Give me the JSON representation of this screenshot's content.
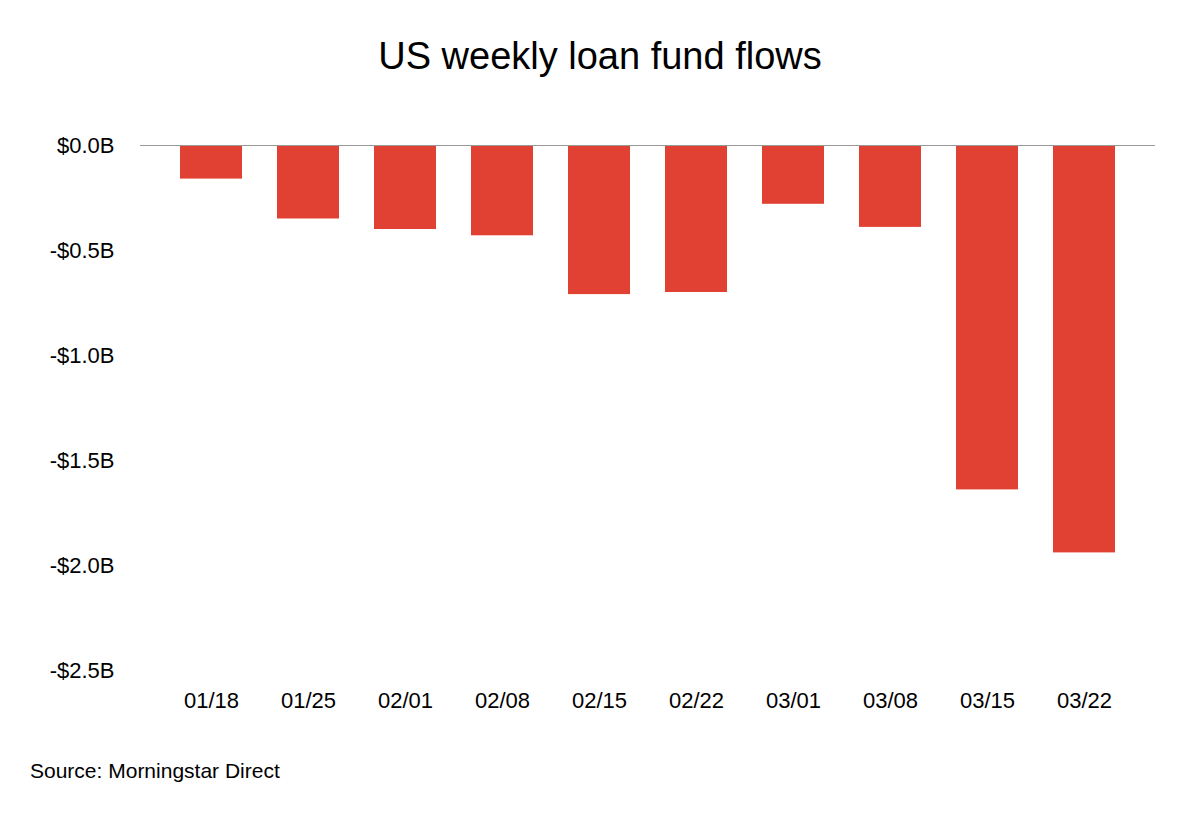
{
  "chart_data": {
    "type": "bar",
    "title": "US weekly loan fund flows",
    "source": "Source: Morningstar Direct",
    "categories": [
      "01/18",
      "01/25",
      "02/01",
      "02/08",
      "02/15",
      "02/22",
      "03/01",
      "03/08",
      "03/15",
      "03/22"
    ],
    "values": [
      -0.16,
      -0.35,
      -0.4,
      -0.43,
      -0.71,
      -0.7,
      -0.28,
      -0.39,
      -1.64,
      -1.94
    ],
    "color": "#e04133",
    "ylim": [
      -2.5,
      0
    ],
    "yticks": [
      {
        "value": 0,
        "label": "$0.0B"
      },
      {
        "value": -0.5,
        "label": "-$0.5B"
      },
      {
        "value": -1.0,
        "label": "-$1.0B"
      },
      {
        "value": -1.5,
        "label": "-$1.5B"
      },
      {
        "value": -2.0,
        "label": "-$2.0B"
      },
      {
        "value": -2.5,
        "label": "-$2.5B"
      }
    ],
    "grid": false
  }
}
